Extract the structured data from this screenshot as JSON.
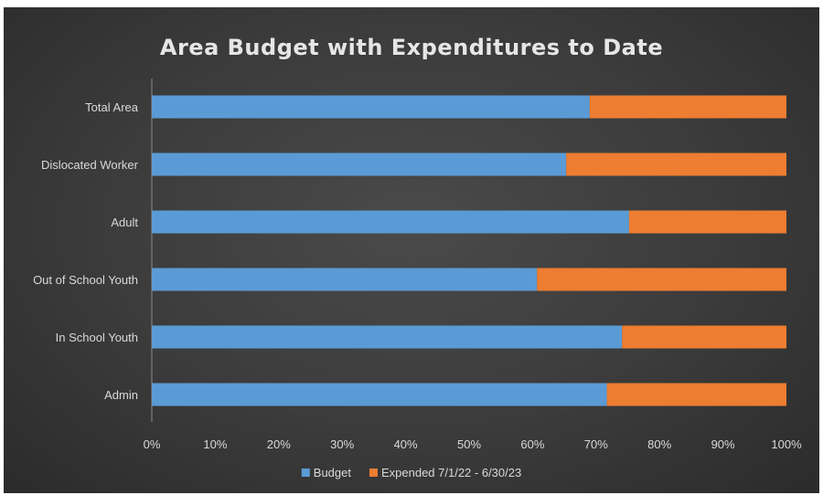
{
  "chart_data": {
    "type": "bar",
    "orientation": "horizontal",
    "stacked": "percent",
    "title": "Area Budget with Expenditures to Date",
    "categories": [
      "Total Area",
      "Dislocated Worker",
      "Adult",
      "Out of School Youth",
      "In School Youth",
      "Admin"
    ],
    "series": [
      {
        "name": "Budget",
        "color": "#5b9bd5",
        "values": [
          69,
          65.3,
          75.2,
          60.7,
          74.1,
          71.7
        ]
      },
      {
        "name": "Expended 7/1/22 - 6/30/23",
        "color": "#ed7d31",
        "values": [
          31,
          34.7,
          24.8,
          39.3,
          25.9,
          28.3
        ]
      }
    ],
    "xlim": [
      0,
      100
    ],
    "x_ticks": [
      "0%",
      "10%",
      "20%",
      "30%",
      "40%",
      "50%",
      "60%",
      "70%",
      "80%",
      "90%",
      "100%"
    ],
    "grid": false,
    "legend_position": "bottom",
    "background": "#3f3f3f"
  }
}
